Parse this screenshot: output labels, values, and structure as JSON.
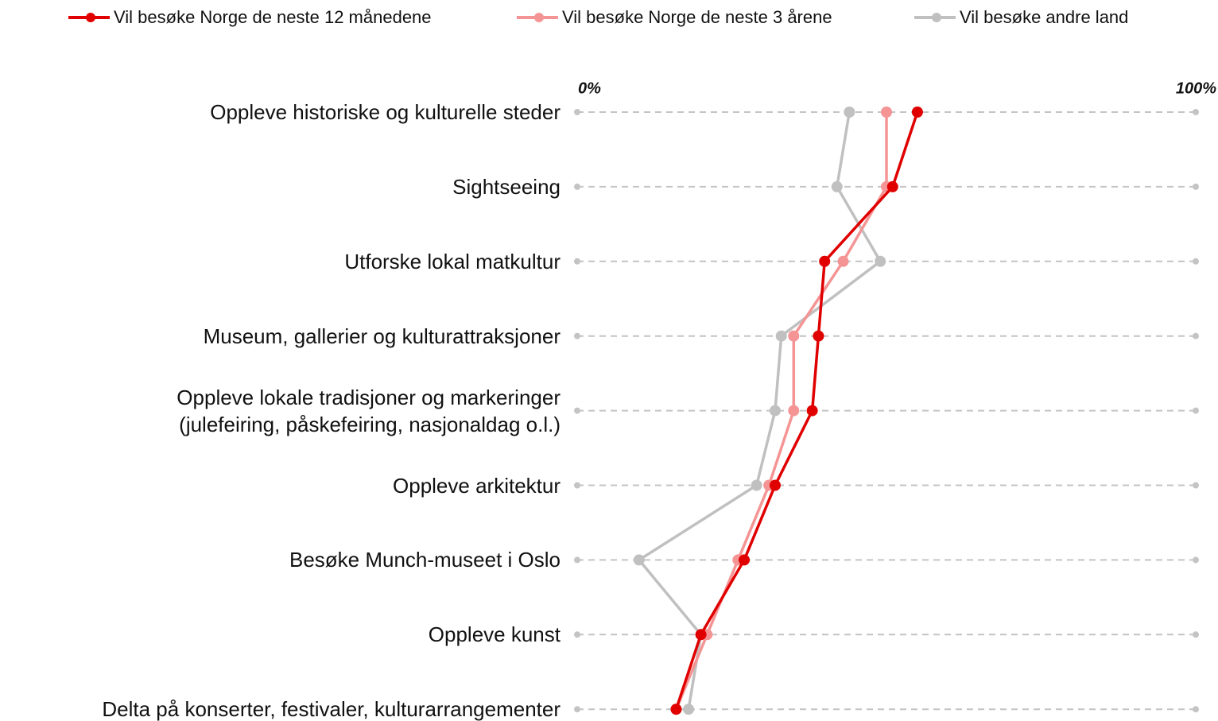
{
  "chart_data": {
    "type": "line",
    "categories": [
      "Oppleve historiske og kulturelle steder",
      "Sightseeing",
      "Utforske lokal matkultur",
      "Museum, gallerier og kulturattraksjoner",
      "Oppleve lokale tradisjoner og markeringer\n(julefeiring, påskefeiring, nasjonaldag o.l.)",
      "Oppleve arkitektur",
      "Besøke Munch-museet i Oslo",
      "Oppleve kunst",
      "Delta på konserter, festivaler, kulturarrangementer"
    ],
    "series": [
      {
        "name": "Vil besøke Norge de neste 12 månedene",
        "color": "#e00000",
        "values": [
          55,
          51,
          40,
          39,
          38,
          32,
          27,
          20,
          16
        ]
      },
      {
        "name": "Vil besøke Norge de neste 3 årene",
        "color": "#f59494",
        "values": [
          50,
          50,
          43,
          35,
          35,
          31,
          26,
          21,
          16
        ]
      },
      {
        "name": "Vil besøke andre land",
        "color": "#c0c0c0",
        "values": [
          44,
          42,
          49,
          33,
          32,
          29,
          10,
          20,
          18
        ]
      }
    ],
    "xlim": [
      0,
      100
    ],
    "xticks": [
      {
        "value": 0,
        "label": "0%"
      },
      {
        "value": 100,
        "label": "100%"
      }
    ],
    "legend": "top"
  }
}
